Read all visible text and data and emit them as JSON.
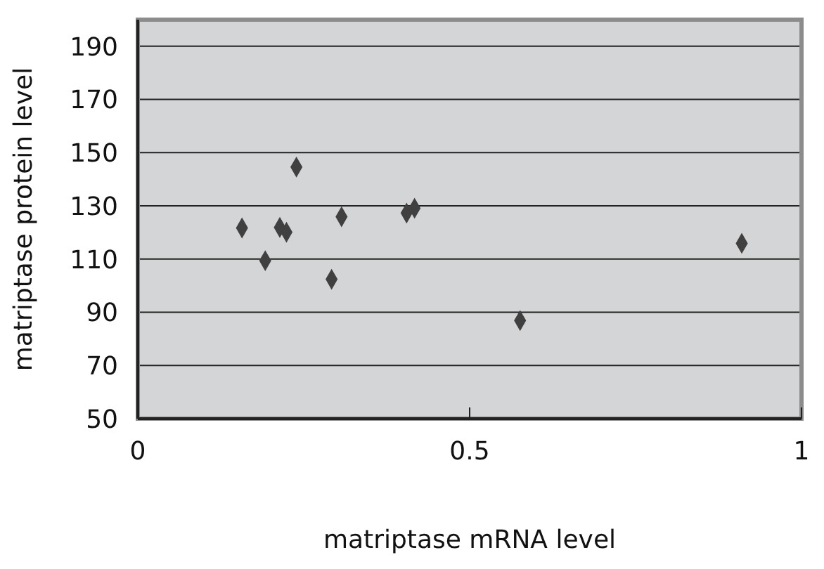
{
  "chart_data": {
    "type": "scatter",
    "xlabel": "matriptase mRNA level",
    "ylabel": "matriptase protein level",
    "x": [
      0.157,
      0.192,
      0.214,
      0.224,
      0.239,
      0.292,
      0.307,
      0.405,
      0.417,
      0.576,
      0.91
    ],
    "values": [
      121.7,
      109.4,
      121.9,
      120.1,
      144.6,
      102.4,
      125.9,
      127.3,
      129.1,
      86.9,
      115.9
    ],
    "color": "#404040",
    "marker": "diamond",
    "xlim": [
      0,
      1
    ],
    "xticks": [
      0,
      0.5,
      1
    ],
    "ylim": [
      50,
      200
    ],
    "yticks": [
      50,
      70,
      90,
      110,
      130,
      150,
      170,
      190
    ],
    "grid": "y"
  }
}
